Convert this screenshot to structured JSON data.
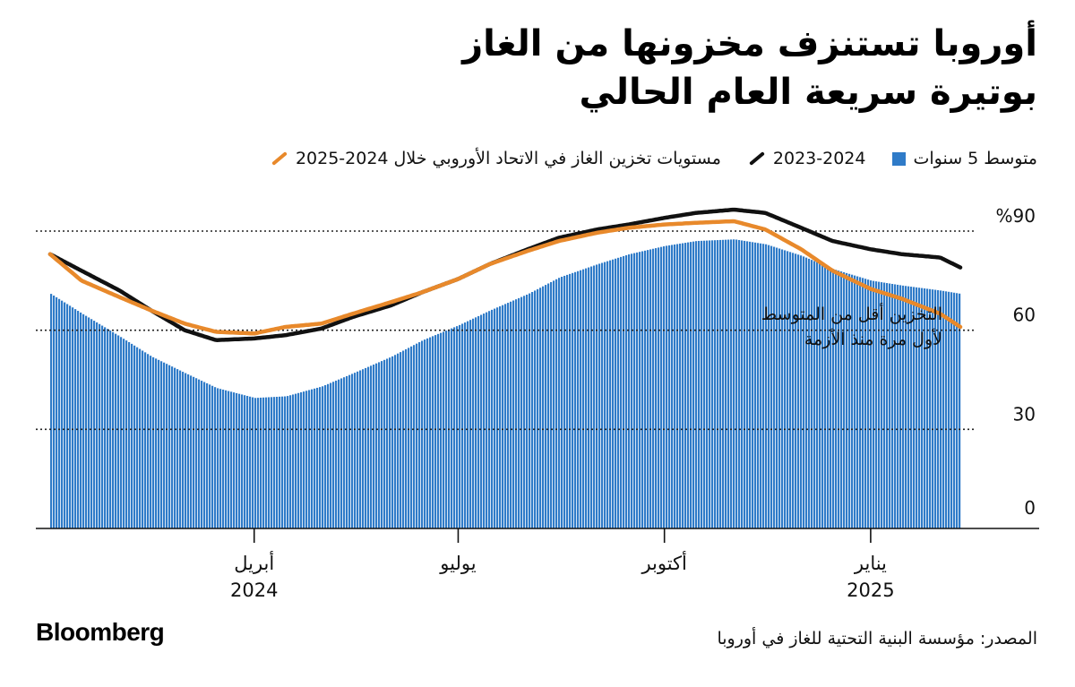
{
  "title": {
    "line1": "أوروبا تستنزف مخزونها من الغاز",
    "line2": "بوتيرة سريعة العام الحالي"
  },
  "legend": {
    "orange_label": "مستويات تخزين الغاز في الاتحاد الأوروبي خلال 2024-2025",
    "black_label": "2023-2024",
    "blue_label": "متوسط 5 سنوات"
  },
  "colors": {
    "orange": "#E8892B",
    "black": "#111111",
    "blue": "#2F7BC8",
    "gridline": "#222222"
  },
  "annotation": {
    "line1": "التخزين أقل من المتوسط",
    "line2": "لأول مرة منذ الأزمة"
  },
  "source": "المصدر: مؤسسة البنية التحتية للغاز في أوروبا",
  "logo": "Bloomberg",
  "chart_data": {
    "type": "area",
    "x_type": "date",
    "x_range": [
      "2024-01-01",
      "2025-02-20"
    ],
    "ylim": [
      0,
      100
    ],
    "yticks": [
      {
        "value": 0,
        "label": "0"
      },
      {
        "value": 30,
        "label": "30"
      },
      {
        "value": 60,
        "label": "60"
      },
      {
        "value": 90,
        "label": "%90"
      }
    ],
    "xticks": [
      {
        "date": "2024-04-01",
        "month": "أبريل",
        "year": "2024"
      },
      {
        "date": "2024-07-01",
        "month": "يوليو",
        "year": ""
      },
      {
        "date": "2024-10-01",
        "month": "أكتوبر",
        "year": ""
      },
      {
        "date": "2025-01-01",
        "month": "يناير",
        "year": "2025"
      }
    ],
    "grid": "dotted horizontal at 30, 60, 90",
    "series": [
      {
        "key": "avg5",
        "label": "متوسط 5 سنوات",
        "style": "bars",
        "color": "#2F7BC8",
        "points": [
          [
            "2024-01-01",
            71
          ],
          [
            "2024-01-15",
            65
          ],
          [
            "2024-02-01",
            58
          ],
          [
            "2024-02-15",
            52
          ],
          [
            "2024-03-01",
            47
          ],
          [
            "2024-03-15",
            42.5
          ],
          [
            "2024-04-01",
            39.5
          ],
          [
            "2024-04-15",
            40
          ],
          [
            "2024-05-01",
            43
          ],
          [
            "2024-05-15",
            47
          ],
          [
            "2024-06-01",
            52
          ],
          [
            "2024-06-15",
            57
          ],
          [
            "2024-07-01",
            61.5
          ],
          [
            "2024-07-15",
            66
          ],
          [
            "2024-08-01",
            71
          ],
          [
            "2024-08-15",
            76
          ],
          [
            "2024-09-01",
            80
          ],
          [
            "2024-09-15",
            83
          ],
          [
            "2024-10-01",
            85.5
          ],
          [
            "2024-10-15",
            87
          ],
          [
            "2024-11-01",
            87.5
          ],
          [
            "2024-11-15",
            86
          ],
          [
            "2024-12-01",
            82.5
          ],
          [
            "2024-12-15",
            78.5
          ],
          [
            "2025-01-01",
            75
          ],
          [
            "2025-01-15",
            73.5
          ],
          [
            "2025-02-01",
            72
          ],
          [
            "2025-02-10",
            71
          ]
        ]
      },
      {
        "key": "prev",
        "label": "2023-2024",
        "style": "line",
        "color": "#111111",
        "points": [
          [
            "2024-01-01",
            83
          ],
          [
            "2024-01-15",
            78
          ],
          [
            "2024-02-01",
            72
          ],
          [
            "2024-02-15",
            66
          ],
          [
            "2024-03-01",
            60
          ],
          [
            "2024-03-15",
            57
          ],
          [
            "2024-04-01",
            57.5
          ],
          [
            "2024-04-15",
            58.5
          ],
          [
            "2024-05-01",
            60.5
          ],
          [
            "2024-05-15",
            64
          ],
          [
            "2024-06-01",
            67.5
          ],
          [
            "2024-06-15",
            71.5
          ],
          [
            "2024-07-01",
            75.5
          ],
          [
            "2024-07-15",
            80
          ],
          [
            "2024-08-01",
            84.5
          ],
          [
            "2024-08-15",
            88
          ],
          [
            "2024-09-01",
            90.5
          ],
          [
            "2024-09-15",
            92
          ],
          [
            "2024-10-01",
            94
          ],
          [
            "2024-10-15",
            95.5
          ],
          [
            "2024-11-01",
            96.5
          ],
          [
            "2024-11-15",
            95.5
          ],
          [
            "2024-12-01",
            91
          ],
          [
            "2024-12-15",
            87
          ],
          [
            "2025-01-01",
            84.5
          ],
          [
            "2025-01-15",
            83
          ],
          [
            "2025-02-01",
            82
          ],
          [
            "2025-02-10",
            79
          ]
        ]
      },
      {
        "key": "curr",
        "label": "مستويات تخزين الغاز في الاتحاد الأوروبي خلال 2024-2025",
        "style": "line",
        "color": "#E8892B",
        "points": [
          [
            "2024-01-01",
            83
          ],
          [
            "2024-01-15",
            75
          ],
          [
            "2024-02-01",
            70
          ],
          [
            "2024-02-15",
            66
          ],
          [
            "2024-03-01",
            62
          ],
          [
            "2024-03-15",
            59.5
          ],
          [
            "2024-04-01",
            59
          ],
          [
            "2024-04-15",
            61
          ],
          [
            "2024-05-01",
            62
          ],
          [
            "2024-05-15",
            65
          ],
          [
            "2024-06-01",
            68.5
          ],
          [
            "2024-06-15",
            71.5
          ],
          [
            "2024-07-01",
            75.5
          ],
          [
            "2024-07-15",
            80
          ],
          [
            "2024-08-01",
            84
          ],
          [
            "2024-08-15",
            87
          ],
          [
            "2024-09-01",
            89.5
          ],
          [
            "2024-09-15",
            91
          ],
          [
            "2024-10-01",
            92
          ],
          [
            "2024-10-15",
            92.5
          ],
          [
            "2024-11-01",
            93
          ],
          [
            "2024-11-15",
            90.5
          ],
          [
            "2024-12-01",
            84.5
          ],
          [
            "2024-12-15",
            78
          ],
          [
            "2025-01-01",
            72.5
          ],
          [
            "2025-01-15",
            69.5
          ],
          [
            "2025-02-01",
            65
          ],
          [
            "2025-02-10",
            61
          ]
        ]
      }
    ]
  }
}
